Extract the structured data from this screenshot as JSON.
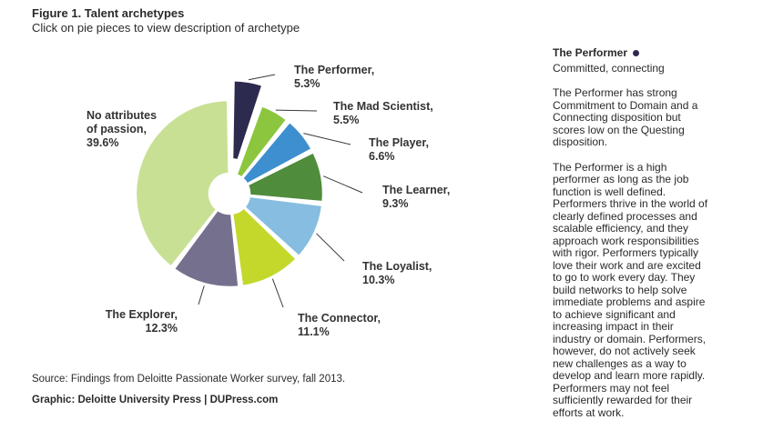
{
  "figure": {
    "title": "Figure 1. Talent archetypes",
    "subtitle": "Click on pie pieces to view description of archetype"
  },
  "chart_data": {
    "type": "pie",
    "title": "Figure 1. Talent archetypes",
    "donut": true,
    "unit": "%",
    "slices": [
      {
        "name": "The Performer",
        "label": "The Performer,",
        "value": 5.3,
        "value_label": "5.3%",
        "color": "#2d2a4f",
        "selected": true
      },
      {
        "name": "The Mad Scientist",
        "label": "The Mad Scientist,",
        "value": 5.5,
        "value_label": "5.5%",
        "color": "#8cc63e"
      },
      {
        "name": "The Player",
        "label": "The Player,",
        "value": 6.6,
        "value_label": "6.6%",
        "color": "#3d8fcf"
      },
      {
        "name": "The Learner",
        "label": "The Learner,",
        "value": 9.3,
        "value_label": "9.3%",
        "color": "#4f8c3b"
      },
      {
        "name": "The Loyalist",
        "label": "The Loyalist,",
        "value": 10.3,
        "value_label": "10.3%",
        "color": "#86bde0"
      },
      {
        "name": "The Connector",
        "label": "The Connector,",
        "value": 11.1,
        "value_label": "11.1%",
        "color": "#c4d82c"
      },
      {
        "name": "The Explorer",
        "label": "The Explorer,",
        "value": 12.3,
        "value_label": "12.3%",
        "color": "#76708f"
      },
      {
        "name": "No attributes of passion",
        "label_lines": [
          "No attributes",
          "of passion,"
        ],
        "value": 39.6,
        "value_label": "39.6%",
        "color": "#c8e094"
      }
    ]
  },
  "detail": {
    "name": "The Performer",
    "dot_color": "#2d2a4f",
    "tagline": "Committed, connecting",
    "paragraph1": "The Performer has strong Commitment to Domain and a Connecting disposition but scores low on the Questing disposition.",
    "paragraph2": "The Performer is a high performer as long as the job function is well defined. Performers thrive in the world of clearly defined processes and scalable efficiency, and they approach work responsibilities with rigor. Performers typically love their work and are excited to go to work every day. They build networks to help solve immediate problems and aspire to achieve significant and increasing impact in their industry or domain. Performers, however, do not actively seek new challenges as a way to develop and learn more rapidly. Performers may not feel sufficiently rewarded for their efforts at work."
  },
  "footer": {
    "source": "Source: Findings from Deloitte Passionate Worker survey, fall 2013.",
    "credit": "Graphic: Deloitte University Press | DUPress.com"
  }
}
